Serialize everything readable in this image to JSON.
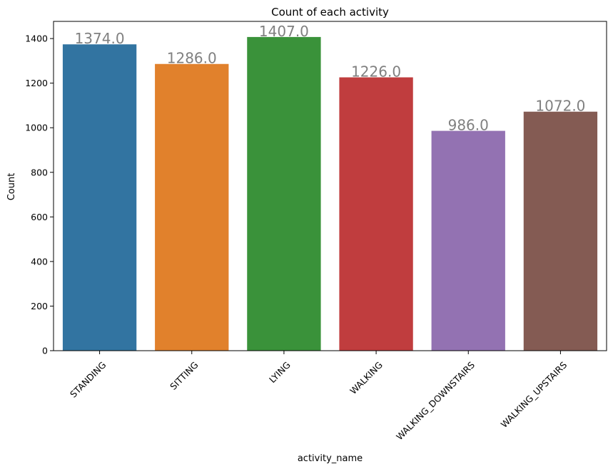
{
  "chart_data": {
    "type": "bar",
    "title": "Count of each activity",
    "xlabel": "activity_name",
    "ylabel": "Count",
    "categories": [
      "STANDING",
      "SITTING",
      "LYING",
      "WALKING",
      "WALKING_DOWNSTAIRS",
      "WALKING_UPSTAIRS"
    ],
    "values": [
      1374,
      1286,
      1407,
      1226,
      986,
      1072
    ],
    "value_labels": [
      "1374.0",
      "1286.0",
      "1407.0",
      "1226.0",
      "986.0",
      "1072.0"
    ],
    "colors": [
      "#3274a1",
      "#e1812c",
      "#3a923a",
      "#c03d3e",
      "#9372b2",
      "#845b53"
    ],
    "label_color": "#808080",
    "ylim": [
      0,
      1477
    ],
    "yticks": [
      0,
      200,
      400,
      600,
      800,
      1000,
      1200,
      1400
    ],
    "grid": false,
    "legend": "none"
  }
}
